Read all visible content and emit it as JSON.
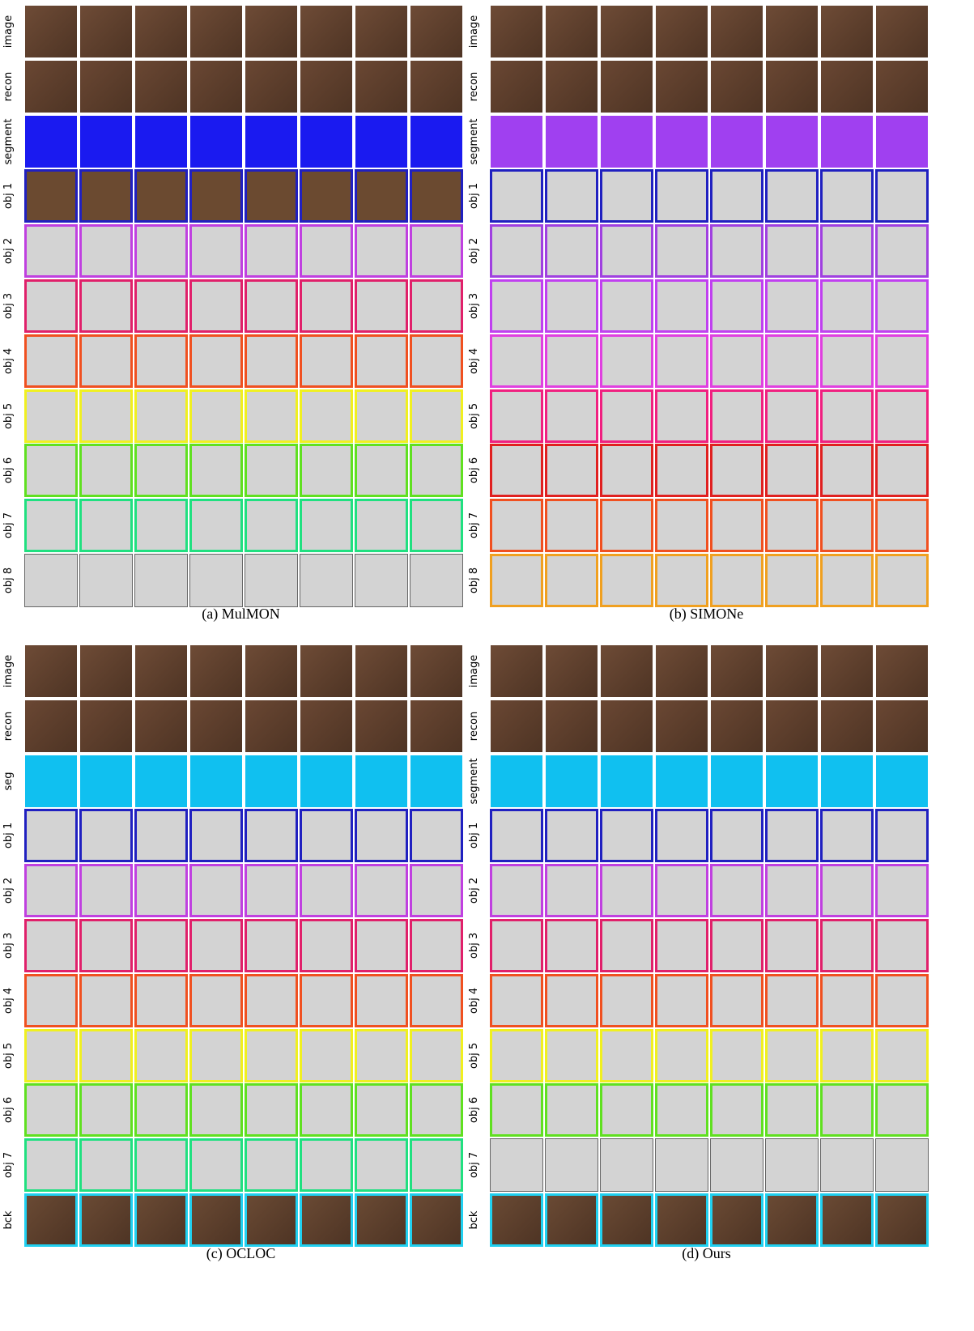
{
  "panels": [
    {
      "caption": "(a) MulMON",
      "rows": [
        {
          "label": "image",
          "fill": "#6e4b36",
          "border": "#ffffff"
        },
        {
          "label": "recon",
          "fill": "#6a4733",
          "border": "#ffffff"
        },
        {
          "label": "segment",
          "fill": "#1a1af0",
          "border": "#ffffff"
        },
        {
          "label": "obj 1",
          "fill": "#6b4a30",
          "border": "#2020c0"
        },
        {
          "label": "obj 2",
          "fill": "#d3d3d3",
          "border": "#c040e0"
        },
        {
          "label": "obj 3",
          "fill": "#d3d3d3",
          "border": "#e0206a"
        },
        {
          "label": "obj 4",
          "fill": "#d3d3d3",
          "border": "#f05020"
        },
        {
          "label": "obj 5",
          "fill": "#d3d3d3",
          "border": "#f0f020"
        },
        {
          "label": "obj 6",
          "fill": "#d3d3d3",
          "border": "#60e020"
        },
        {
          "label": "obj 7",
          "fill": "#d3d3d3",
          "border": "#20e080"
        },
        {
          "label": "obj 8",
          "fill": "#d3d3d3",
          "border": "#666666"
        }
      ]
    },
    {
      "caption": "(b) SIMONe",
      "rows": [
        {
          "label": "image",
          "fill": "#6e4b36",
          "border": "#ffffff"
        },
        {
          "label": "recon",
          "fill": "#6a4733",
          "border": "#ffffff"
        },
        {
          "label": "segment",
          "fill": "#a040f0",
          "border": "#ffffff"
        },
        {
          "label": "obj 1",
          "fill": "#d3d3d3",
          "border": "#2020c0"
        },
        {
          "label": "obj 2",
          "fill": "#d3d3d3",
          "border": "#a040e0"
        },
        {
          "label": "obj 3",
          "fill": "#d3d3d3",
          "border": "#c040f0"
        },
        {
          "label": "obj 4",
          "fill": "#d3d3d3",
          "border": "#e040e0"
        },
        {
          "label": "obj 5",
          "fill": "#d3d3d3",
          "border": "#f02080"
        },
        {
          "label": "obj 6",
          "fill": "#d3d3d3",
          "border": "#e02020"
        },
        {
          "label": "obj 7",
          "fill": "#d3d3d3",
          "border": "#f05020"
        },
        {
          "label": "obj 8",
          "fill": "#d3d3d3",
          "border": "#f0a020"
        }
      ]
    },
    {
      "caption": "(c) OCLOC",
      "rows": [
        {
          "label": "image",
          "fill": "#6e4b36",
          "border": "#ffffff"
        },
        {
          "label": "recon",
          "fill": "#6a4733",
          "border": "#ffffff"
        },
        {
          "label": "seg",
          "fill": "#10c0f0",
          "border": "#ffffff"
        },
        {
          "label": "obj 1",
          "fill": "#d3d3d3",
          "border": "#2020c0"
        },
        {
          "label": "obj 2",
          "fill": "#d3d3d3",
          "border": "#c040e0"
        },
        {
          "label": "obj 3",
          "fill": "#d3d3d3",
          "border": "#e0206a"
        },
        {
          "label": "obj 4",
          "fill": "#d3d3d3",
          "border": "#f05020"
        },
        {
          "label": "obj 5",
          "fill": "#d3d3d3",
          "border": "#f0f020"
        },
        {
          "label": "obj 6",
          "fill": "#d3d3d3",
          "border": "#60e020"
        },
        {
          "label": "obj 7",
          "fill": "#d3d3d3",
          "border": "#20e080"
        },
        {
          "label": "bck",
          "fill": "#6a4a34",
          "border": "#20d0f0"
        }
      ]
    },
    {
      "caption": "(d) Ours",
      "rows": [
        {
          "label": "image",
          "fill": "#6e4b36",
          "border": "#ffffff"
        },
        {
          "label": "recon",
          "fill": "#6a4733",
          "border": "#ffffff"
        },
        {
          "label": "segment",
          "fill": "#10c0f0",
          "border": "#ffffff"
        },
        {
          "label": "obj 1",
          "fill": "#d3d3d3",
          "border": "#2020c0"
        },
        {
          "label": "obj 2",
          "fill": "#d3d3d3",
          "border": "#c040e0"
        },
        {
          "label": "obj 3",
          "fill": "#d3d3d3",
          "border": "#e0206a"
        },
        {
          "label": "obj 4",
          "fill": "#d3d3d3",
          "border": "#f05020"
        },
        {
          "label": "obj 5",
          "fill": "#d3d3d3",
          "border": "#f0f020"
        },
        {
          "label": "obj 6",
          "fill": "#d3d3d3",
          "border": "#60e020"
        },
        {
          "label": "obj 7",
          "fill": "#d3d3d3",
          "border": "#666666"
        },
        {
          "label": "bck",
          "fill": "#6a4a34",
          "border": "#20d0f0"
        }
      ]
    }
  ]
}
